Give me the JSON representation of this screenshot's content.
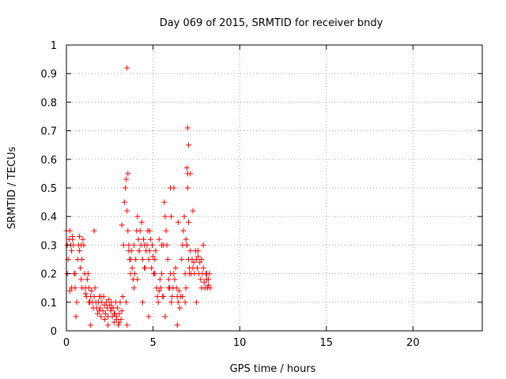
{
  "chart_data": {
    "type": "scatter",
    "title": "Day 069 of 2015, SRMTID for receiver bndy",
    "xlabel": "GPS time / hours",
    "ylabel": "SRMTID / TECUs",
    "xlim": [
      0,
      24
    ],
    "ylim": [
      0,
      1
    ],
    "xticks": [
      "0",
      "5",
      "10",
      "15",
      "20"
    ],
    "yticks": [
      "0",
      "0.1",
      "0.2",
      "0.3",
      "0.4",
      "0.5",
      "0.6",
      "0.7",
      "0.8",
      "0.9",
      "1"
    ],
    "grid": true,
    "marker": "+",
    "marker_color": "#ff0000",
    "series": [
      {
        "x": [
          0.0,
          0.05,
          0.1,
          0.15,
          0.2,
          0.25,
          0.3,
          0.35,
          0.4,
          0.45,
          0.5,
          0.55,
          0.6,
          0.65,
          0.7,
          0.75,
          0.8,
          0.85,
          0.9,
          0.95,
          1.0,
          1.05,
          1.1,
          1.15,
          1.2,
          1.25,
          1.3,
          1.35,
          1.4,
          1.45,
          1.5,
          1.55,
          1.6,
          1.65,
          1.7,
          1.75,
          1.8,
          1.85,
          1.9,
          1.95,
          2.0,
          2.05,
          2.1,
          2.15,
          2.2,
          2.25,
          2.3,
          2.35,
          2.4,
          2.45,
          2.5,
          2.55,
          2.6,
          2.65,
          2.7,
          2.75,
          2.8,
          2.85,
          2.9,
          2.95,
          3.0,
          3.05,
          3.1,
          3.15,
          3.2,
          3.25,
          3.3,
          3.35,
          3.4,
          3.45,
          3.5,
          3.55,
          3.6,
          3.65,
          3.7,
          3.75,
          3.8,
          3.85,
          3.9,
          3.95,
          4.0,
          4.05,
          4.1,
          4.15,
          4.2,
          4.25,
          4.3,
          4.35,
          4.4,
          4.45,
          4.5,
          4.55,
          4.6,
          4.65,
          4.7,
          4.75,
          4.8,
          4.85,
          4.9,
          4.95,
          5.0,
          5.05,
          5.1,
          5.15,
          5.2,
          5.25,
          5.3,
          5.35,
          5.4,
          5.45,
          5.5,
          5.55,
          5.6,
          5.65,
          5.7,
          5.75,
          5.8,
          5.85,
          5.9,
          5.95,
          6.0,
          6.05,
          6.1,
          6.15,
          6.2,
          6.25,
          6.3,
          6.35,
          6.4,
          6.45,
          6.5,
          6.55,
          6.6,
          6.65,
          6.7,
          6.75,
          6.8,
          6.85,
          6.9,
          6.95,
          7.0,
          7.05,
          7.1,
          7.15,
          7.2,
          7.25,
          7.3,
          7.35,
          7.4,
          7.45,
          7.5,
          7.55,
          7.6,
          7.65,
          7.7,
          7.75,
          7.8,
          7.85,
          7.9,
          7.95,
          8.0,
          8.05,
          8.1,
          8.15,
          8.2,
          8.25,
          8.3,
          0.05,
          0.2,
          0.35,
          0.5,
          0.75,
          0.9,
          1.1,
          1.3,
          1.6,
          1.9,
          2.2,
          2.6,
          2.9,
          3.2,
          3.45,
          3.6,
          3.9,
          4.2,
          4.5,
          4.8,
          5.1,
          5.35,
          5.6,
          5.9,
          6.2,
          6.45,
          6.7,
          6.9,
          7.1,
          7.3,
          7.6,
          7.9,
          8.2,
          0.3,
          0.85,
          1.4,
          2.0,
          2.4,
          2.75,
          3.05,
          3.5,
          3.55,
          3.7,
          4.1,
          4.4,
          4.75,
          5.05,
          5.5,
          5.7,
          6.0,
          6.05,
          6.4,
          6.85,
          6.95,
          7.0,
          7.05,
          7.5,
          7.8,
          8.1,
          3.5,
          7.0,
          7.05,
          6.95,
          7.15
        ],
        "y": [
          0.35,
          0.3,
          0.25,
          0.32,
          0.35,
          0.3,
          0.28,
          0.33,
          0.3,
          0.2,
          0.15,
          0.05,
          0.1,
          0.25,
          0.3,
          0.28,
          0.22,
          0.18,
          0.25,
          0.32,
          0.3,
          0.2,
          0.15,
          0.12,
          0.18,
          0.2,
          0.15,
          0.1,
          0.12,
          0.14,
          0.1,
          0.08,
          0.12,
          0.15,
          0.1,
          0.08,
          0.06,
          0.1,
          0.12,
          0.08,
          0.05,
          0.1,
          0.07,
          0.12,
          0.09,
          0.06,
          0.1,
          0.08,
          0.05,
          0.11,
          0.09,
          0.07,
          0.1,
          0.05,
          0.08,
          0.03,
          0.06,
          0.1,
          0.04,
          0.08,
          0.02,
          0.06,
          0.1,
          0.04,
          0.07,
          0.12,
          0.3,
          0.45,
          0.5,
          0.53,
          0.42,
          0.35,
          0.3,
          0.25,
          0.2,
          0.28,
          0.22,
          0.18,
          0.15,
          0.2,
          0.25,
          0.35,
          0.4,
          0.32,
          0.28,
          0.35,
          0.3,
          0.38,
          0.25,
          0.32,
          0.3,
          0.22,
          0.28,
          0.3,
          0.35,
          0.25,
          0.28,
          0.32,
          0.22,
          0.3,
          0.26,
          0.2,
          0.25,
          0.28,
          0.15,
          0.12,
          0.1,
          0.14,
          0.18,
          0.15,
          0.2,
          0.12,
          0.3,
          0.45,
          0.4,
          0.35,
          0.3,
          0.25,
          0.18,
          0.15,
          0.2,
          0.1,
          0.12,
          0.15,
          0.2,
          0.18,
          0.22,
          0.15,
          0.12,
          0.1,
          0.14,
          0.08,
          0.12,
          0.25,
          0.3,
          0.35,
          0.4,
          0.2,
          0.15,
          0.3,
          0.5,
          0.25,
          0.22,
          0.28,
          0.2,
          0.25,
          0.22,
          0.24,
          0.2,
          0.28,
          0.25,
          0.22,
          0.26,
          0.2,
          0.24,
          0.18,
          0.15,
          0.2,
          0.22,
          0.17,
          0.15,
          0.2,
          0.18,
          0.15,
          0.16,
          0.2,
          0.15,
          0.2,
          0.14,
          0.32,
          0.2,
          0.33,
          0.15,
          0.13,
          0.1,
          0.35,
          0.07,
          0.04,
          0.08,
          0.05,
          0.37,
          0.1,
          0.28,
          0.3,
          0.28,
          0.22,
          0.35,
          0.2,
          0.32,
          0.12,
          0.15,
          0.5,
          0.38,
          0.12,
          0.32,
          0.2,
          0.42,
          0.28,
          0.3,
          0.18,
          0.15,
          0.3,
          0.02,
          0.12,
          0.02,
          0.06,
          0.03,
          0.02,
          0.55,
          0.25,
          0.18,
          0.1,
          0.05,
          0.2,
          0.3,
          0.05,
          0.5,
          0.4,
          0.02,
          0.1,
          0.3,
          0.55,
          0.38,
          0.1,
          0.25,
          0.2,
          0.92,
          0.71,
          0.65,
          0.57,
          0.55
        ],
        "marker_color": "#ff0000"
      }
    ]
  }
}
